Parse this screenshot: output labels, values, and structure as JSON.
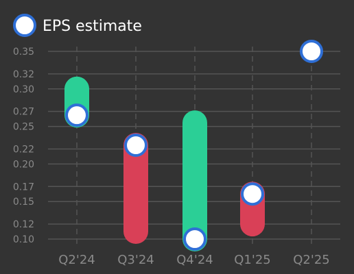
{
  "chart_data": {
    "type": "bar",
    "subtype": "range-bar-with-markers",
    "categories": [
      "Q2'24",
      "Q3'24",
      "Q4'24",
      "Q1'25",
      "Q2'25"
    ],
    "series": [
      {
        "name": "EPS estimate",
        "values": [
          0.265,
          0.225,
          0.1,
          0.16,
          0.35
        ]
      }
    ],
    "ranges": [
      {
        "low": 0.265,
        "high": 0.3,
        "direction": "up"
      },
      {
        "low": 0.11,
        "high": 0.225,
        "direction": "down"
      },
      {
        "low": 0.1,
        "high": 0.255,
        "direction": "up"
      },
      {
        "low": 0.12,
        "high": 0.16,
        "direction": "down"
      },
      null
    ],
    "y_ticks": [
      "0.10",
      "0.12",
      "0.15",
      "0.17",
      "0.20",
      "0.22",
      "0.25",
      "0.27",
      "0.30",
      "0.32",
      "0.35"
    ],
    "ylim": [
      0.1,
      0.35
    ],
    "grid": true,
    "legend": "top-left",
    "colors": {
      "up": "#2bcf96",
      "down": "#d94057",
      "marker_fill": "#ffffff",
      "marker_stroke": "#2f6fd6",
      "grid": "#555555",
      "axis_text": "#8a8a8a"
    }
  }
}
